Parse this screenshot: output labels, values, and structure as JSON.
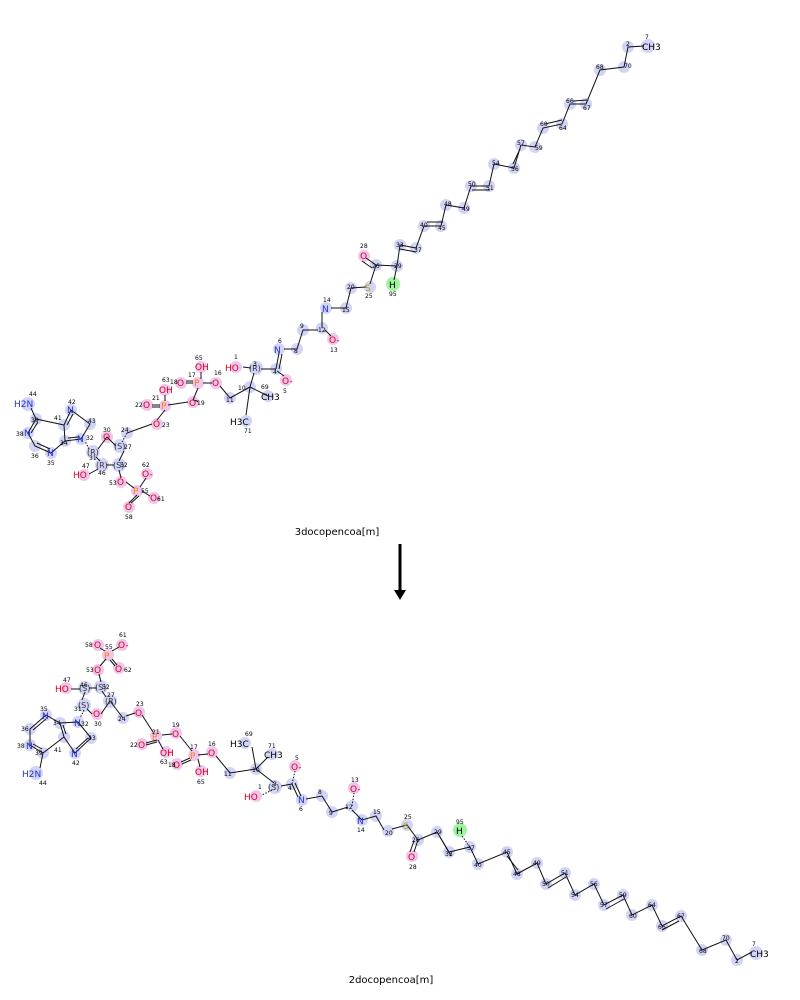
{
  "reactant": {
    "name": "3docopencoa[m]",
    "atoms": [
      {
        "label": "CH3",
        "num": "7"
      },
      {
        "label": "",
        "num": "2"
      },
      {
        "label": "",
        "num": "70"
      },
      {
        "label": "",
        "num": "68"
      },
      {
        "label": "",
        "num": "67"
      },
      {
        "label": "",
        "num": "66"
      },
      {
        "label": "",
        "num": "64"
      },
      {
        "label": "",
        "num": "60"
      },
      {
        "label": "",
        "num": "59"
      },
      {
        "label": "",
        "num": "57"
      },
      {
        "label": "",
        "num": "56"
      },
      {
        "label": "",
        "num": "54"
      },
      {
        "label": "",
        "num": "51"
      },
      {
        "label": "",
        "num": "50"
      },
      {
        "label": "",
        "num": "49"
      },
      {
        "label": "",
        "num": "48"
      },
      {
        "label": "",
        "num": "45"
      },
      {
        "label": "",
        "num": "40"
      },
      {
        "label": "",
        "num": "37"
      },
      {
        "label": "",
        "num": "33"
      },
      {
        "label": "",
        "num": "29"
      },
      {
        "label": "",
        "num": "26"
      },
      {
        "label": "O",
        "num": "28"
      },
      {
        "label": "S",
        "num": "25"
      },
      {
        "label": "H",
        "num": "95"
      },
      {
        "label": "",
        "num": "20"
      },
      {
        "label": "",
        "num": "15"
      },
      {
        "label": "N",
        "num": "14"
      },
      {
        "label": "",
        "num": "12"
      },
      {
        "label": "O-",
        "num": "13"
      },
      {
        "label": "",
        "num": "9"
      },
      {
        "label": "",
        "num": "8"
      },
      {
        "label": "N",
        "num": "6"
      },
      {
        "label": "",
        "num": "4"
      },
      {
        "label": "O-",
        "num": "5"
      },
      {
        "label": "(R)",
        "num": "3"
      },
      {
        "label": "HO",
        "num": "1"
      },
      {
        "label": "",
        "num": "10"
      },
      {
        "label": "CH3",
        "num": "69"
      },
      {
        "label": "H3C",
        "num": "71"
      },
      {
        "label": "",
        "num": "11"
      },
      {
        "label": "O",
        "num": "16"
      },
      {
        "label": "P",
        "num": "17"
      },
      {
        "label": "OH",
        "num": "65"
      },
      {
        "label": "O",
        "num": "18"
      },
      {
        "label": "O",
        "num": "19"
      },
      {
        "label": "P",
        "num": "21"
      },
      {
        "label": "OH",
        "num": "63"
      },
      {
        "label": "O",
        "num": "22"
      },
      {
        "label": "O",
        "num": "23"
      },
      {
        "label": "",
        "num": "24"
      },
      {
        "label": "(S)",
        "num": "27"
      },
      {
        "label": "O",
        "num": "30"
      },
      {
        "label": "(R)",
        "num": "31"
      },
      {
        "label": "(R)",
        "num": "46"
      },
      {
        "label": "HO",
        "num": "47"
      },
      {
        "label": "(S)",
        "num": "52"
      },
      {
        "label": "O",
        "num": "53"
      },
      {
        "label": "P",
        "num": "55"
      },
      {
        "label": "O-",
        "num": "62"
      },
      {
        "label": "O-",
        "num": "61"
      },
      {
        "label": "O",
        "num": "58"
      },
      {
        "label": "N",
        "num": "32"
      },
      {
        "label": "",
        "num": "43"
      },
      {
        "label": "N",
        "num": "42"
      },
      {
        "label": "",
        "num": "41"
      },
      {
        "label": "",
        "num": "34"
      },
      {
        "label": "N",
        "num": "35"
      },
      {
        "label": "",
        "num": "36"
      },
      {
        "label": "N",
        "num": "38"
      },
      {
        "label": "",
        "num": "39"
      },
      {
        "label": "H2N",
        "num": "44"
      }
    ]
  },
  "product": {
    "name": "2docopencoa[m]",
    "atoms": [
      {
        "label": "CH3",
        "num": "7"
      },
      {
        "label": "",
        "num": "2"
      },
      {
        "label": "",
        "num": "70"
      },
      {
        "label": "",
        "num": "68"
      },
      {
        "label": "",
        "num": "67"
      },
      {
        "label": "",
        "num": "66"
      },
      {
        "label": "",
        "num": "64"
      },
      {
        "label": "",
        "num": "60"
      },
      {
        "label": "",
        "num": "59"
      },
      {
        "label": "",
        "num": "57"
      },
      {
        "label": "",
        "num": "56"
      },
      {
        "label": "",
        "num": "54"
      },
      {
        "label": "",
        "num": "51"
      },
      {
        "label": "",
        "num": "50"
      },
      {
        "label": "",
        "num": "49"
      },
      {
        "label": "",
        "num": "48"
      },
      {
        "label": "",
        "num": "45"
      },
      {
        "label": "",
        "num": "40"
      },
      {
        "label": "",
        "num": "37"
      },
      {
        "label": "H",
        "num": "95"
      },
      {
        "label": "",
        "num": "33"
      },
      {
        "label": "",
        "num": "29"
      },
      {
        "label": "",
        "num": "26"
      },
      {
        "label": "O",
        "num": "28"
      },
      {
        "label": "S",
        "num": "25"
      },
      {
        "label": "",
        "num": "20"
      },
      {
        "label": "",
        "num": "15"
      },
      {
        "label": "N",
        "num": "14"
      },
      {
        "label": "",
        "num": "12"
      },
      {
        "label": "O-",
        "num": "13"
      },
      {
        "label": "",
        "num": "9"
      },
      {
        "label": "",
        "num": "8"
      },
      {
        "label": "N",
        "num": "6"
      },
      {
        "label": "",
        "num": "4"
      },
      {
        "label": "O-",
        "num": "5"
      },
      {
        "label": "(S)",
        "num": "3"
      },
      {
        "label": "HO",
        "num": "1"
      },
      {
        "label": "",
        "num": "10"
      },
      {
        "label": "H3C",
        "num": "69"
      },
      {
        "label": "CH3",
        "num": "71"
      },
      {
        "label": "",
        "num": "11"
      },
      {
        "label": "O",
        "num": "16"
      },
      {
        "label": "P",
        "num": "17"
      },
      {
        "label": "OH",
        "num": "65"
      },
      {
        "label": "O",
        "num": "18"
      },
      {
        "label": "OH",
        "num": "63"
      },
      {
        "label": "O",
        "num": "19"
      },
      {
        "label": "P",
        "num": "21"
      },
      {
        "label": "O",
        "num": "22"
      },
      {
        "label": "O",
        "num": "23"
      },
      {
        "label": "",
        "num": "24"
      },
      {
        "label": "(R)",
        "num": "27"
      },
      {
        "label": "O",
        "num": "30"
      },
      {
        "label": "(S)",
        "num": "31"
      },
      {
        "label": "(S)",
        "num": "46"
      },
      {
        "label": "HO",
        "num": "47"
      },
      {
        "label": "(S)",
        "num": "52"
      },
      {
        "label": "O",
        "num": "53"
      },
      {
        "label": "P",
        "num": "55"
      },
      {
        "label": "O",
        "num": "58"
      },
      {
        "label": "O-",
        "num": "61"
      },
      {
        "label": "O",
        "num": "62"
      },
      {
        "label": "N",
        "num": "32"
      },
      {
        "label": "",
        "num": "43"
      },
      {
        "label": "N",
        "num": "42"
      },
      {
        "label": "",
        "num": "41"
      },
      {
        "label": "",
        "num": "34"
      },
      {
        "label": "N",
        "num": "35"
      },
      {
        "label": "",
        "num": "36"
      },
      {
        "label": "N",
        "num": "38"
      },
      {
        "label": "",
        "num": "39"
      },
      {
        "label": "H2N",
        "num": "44"
      }
    ]
  },
  "arrow": {
    "direction": "down"
  }
}
